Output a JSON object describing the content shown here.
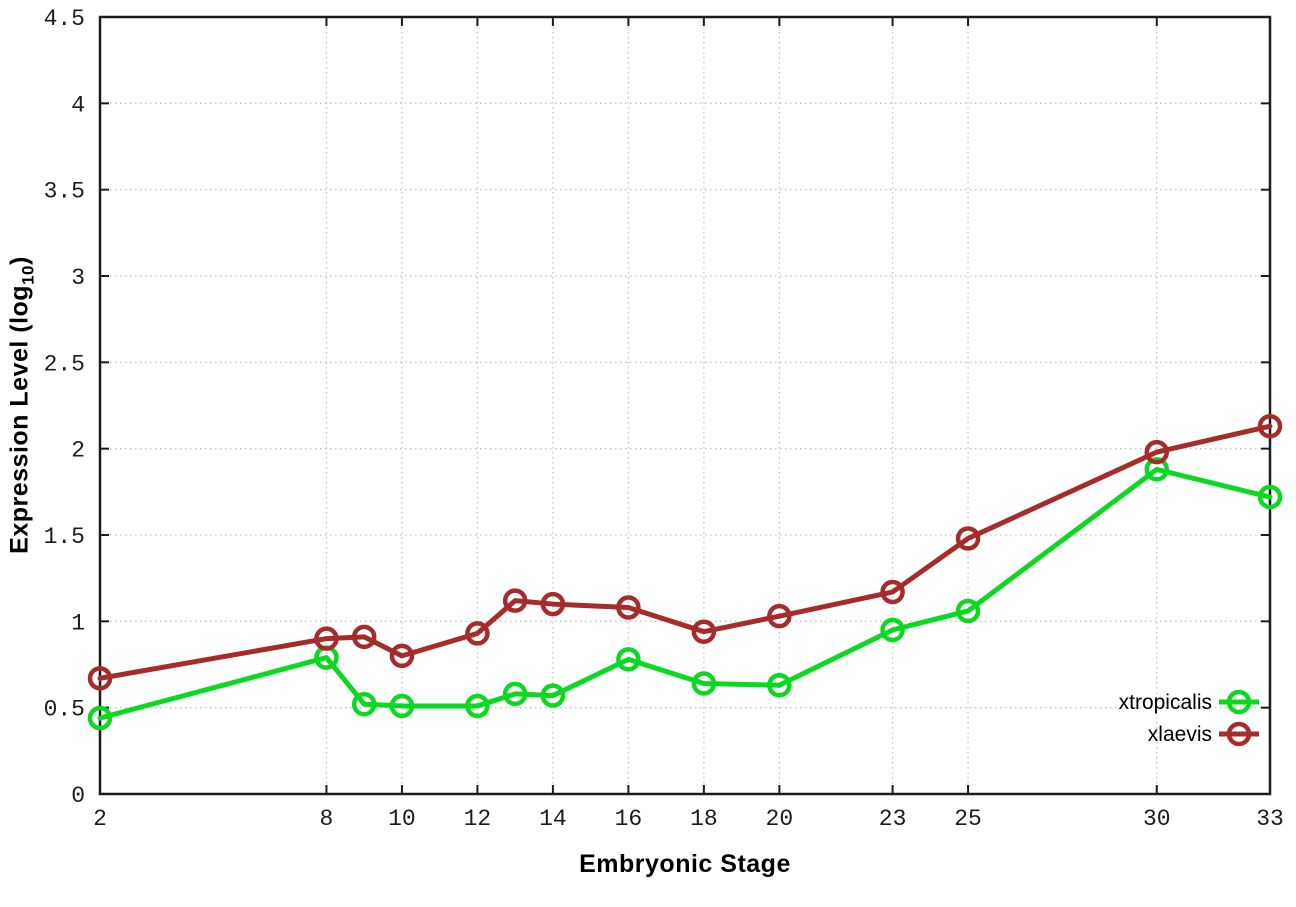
{
  "chart_data": {
    "type": "line",
    "title": "",
    "xlabel": "Embryonic Stage",
    "ylabel_prefix": "Expression Level (log",
    "ylabel_sub": "10",
    "ylabel_suffix": ")",
    "xlim": [
      2,
      33
    ],
    "ylim": [
      0,
      4.5
    ],
    "xticks": [
      2,
      8,
      10,
      12,
      14,
      16,
      18,
      20,
      23,
      25,
      30,
      33
    ],
    "yticks": [
      "0",
      "0.5",
      "1",
      "1.5",
      "2",
      "2.5",
      "3",
      "3.5",
      "4",
      "4.5"
    ],
    "grid": true,
    "marker": "open-circle",
    "legend_position": "bottom-right",
    "x": [
      2,
      8,
      9,
      10,
      12,
      13,
      14,
      16,
      18,
      20,
      23,
      25,
      30,
      33
    ],
    "series": [
      {
        "name": "xtropicalis",
        "color": "#0bd921",
        "values": [
          0.44,
          0.79,
          0.52,
          0.51,
          0.51,
          0.58,
          0.57,
          0.78,
          0.64,
          0.63,
          0.95,
          1.06,
          1.88,
          1.72
        ]
      },
      {
        "name": "xlaevis",
        "color": "#a62b2b",
        "values": [
          0.67,
          0.9,
          0.91,
          0.8,
          0.93,
          1.12,
          1.1,
          1.08,
          0.94,
          1.03,
          1.17,
          1.48,
          1.98,
          2.13
        ]
      }
    ],
    "colors": {
      "background": "#ffffff",
      "axis": "#1c1c1c",
      "grid": "#c4c4c4",
      "tick_text": "#1c1c1c"
    }
  }
}
